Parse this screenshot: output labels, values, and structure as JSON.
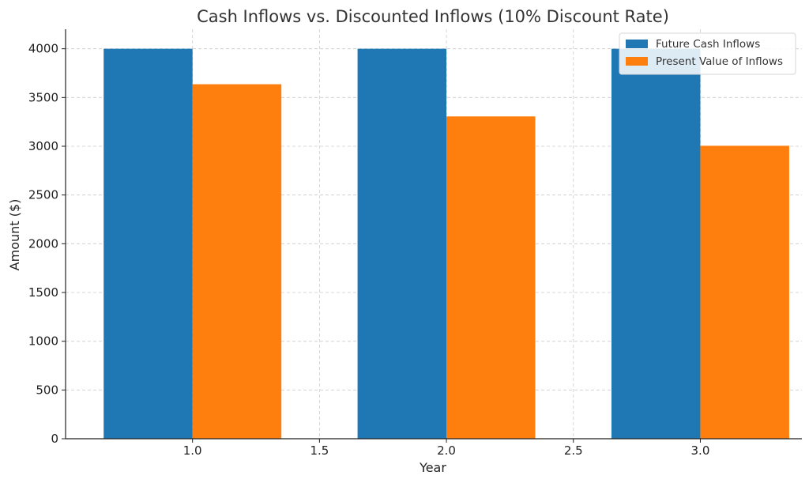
{
  "chart_data": {
    "type": "bar",
    "title": "Cash Inflows vs. Discounted Inflows (10% Discount Rate)",
    "xlabel": "Year",
    "ylabel": "Amount ($)",
    "x": [
      1,
      2,
      3
    ],
    "xlim": [
      0.5,
      3.4
    ],
    "ylim": [
      0,
      4200
    ],
    "xticks": [
      "1.0",
      "1.5",
      "2.0",
      "2.5",
      "3.0"
    ],
    "xtick_values": [
      1.0,
      1.5,
      2.0,
      2.5,
      3.0
    ],
    "yticks": [
      0,
      500,
      1000,
      1500,
      2000,
      2500,
      3000,
      3500,
      4000
    ],
    "grid": true,
    "legend_position": "top-right",
    "series": [
      {
        "name": "Future Cash Inflows",
        "color": "#1f77b4",
        "values": [
          4000,
          4000,
          4000
        ]
      },
      {
        "name": "Present Value of Inflows",
        "color": "#ff7f0e",
        "values": [
          3636,
          3306,
          3005
        ]
      }
    ]
  }
}
